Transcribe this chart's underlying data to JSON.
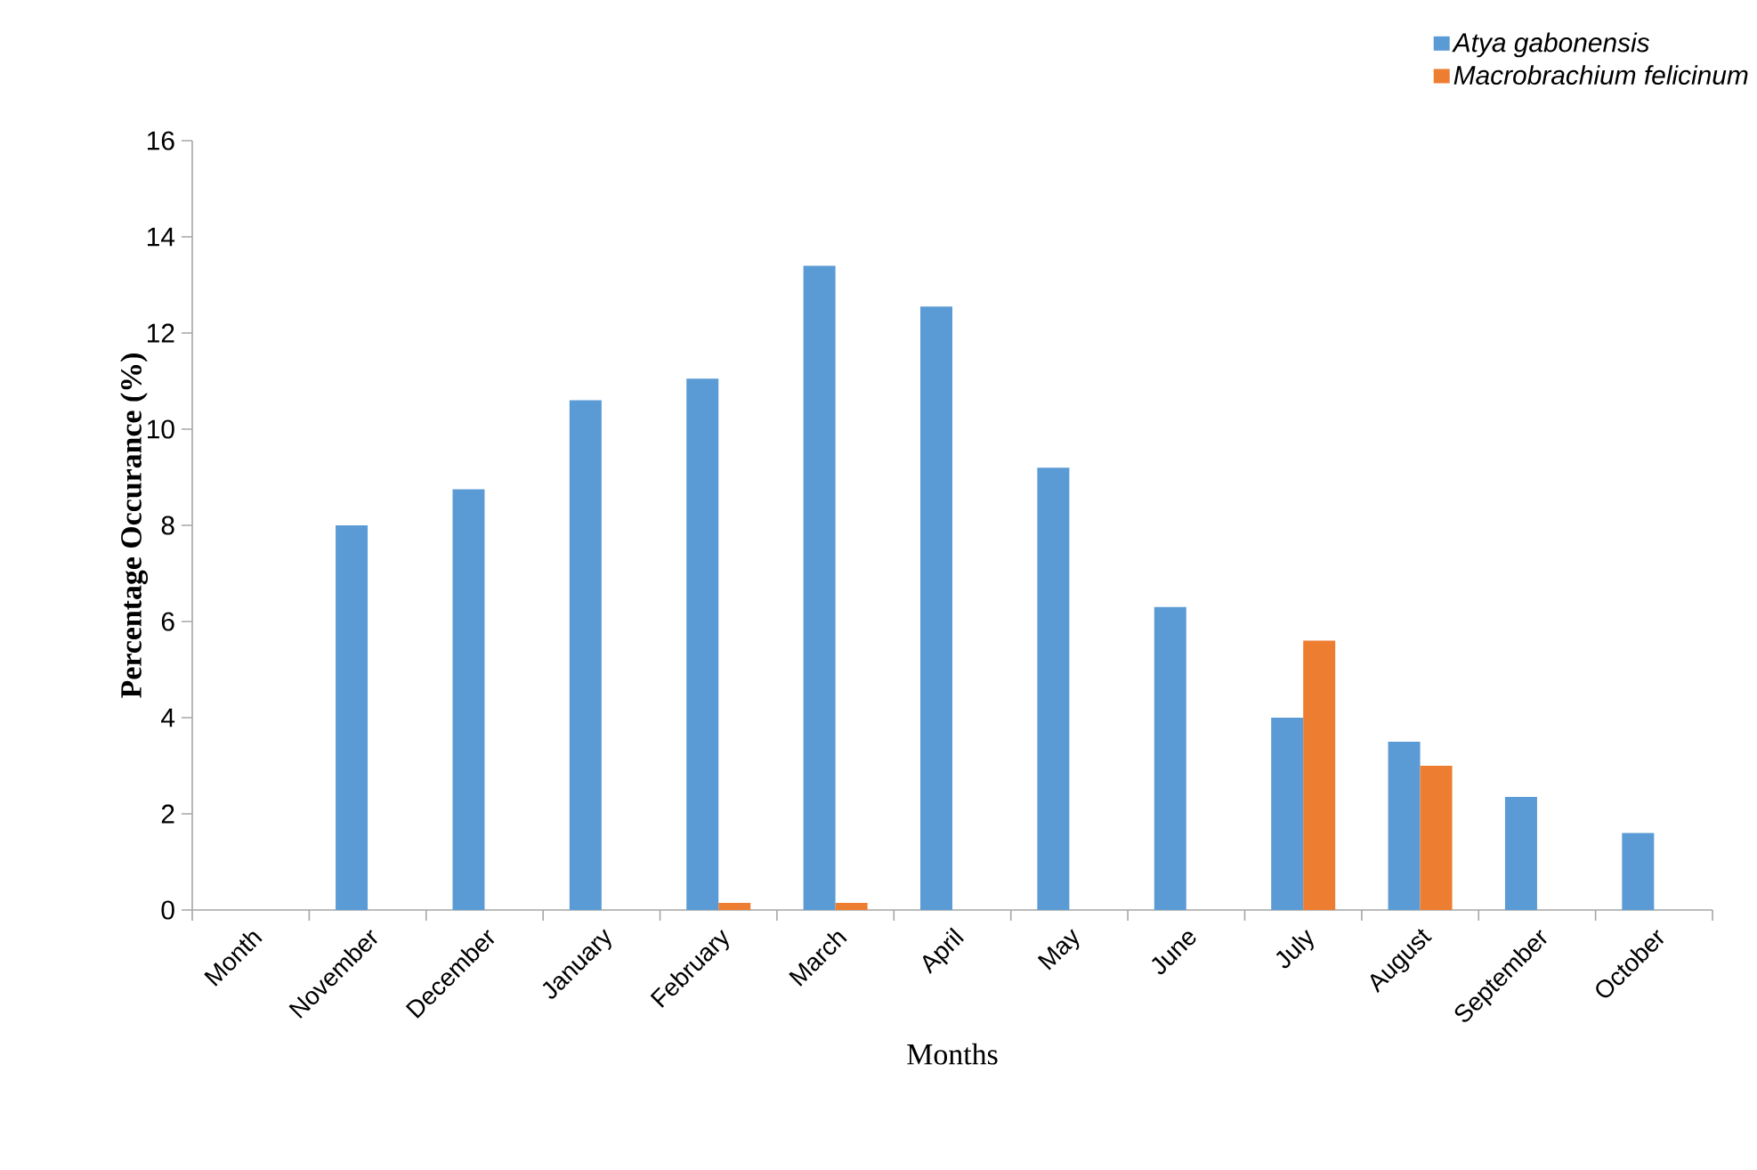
{
  "chart_data": {
    "type": "bar",
    "xlabel": "Months",
    "ylabel": "Percentage Occurance  (%)",
    "categories": [
      "Month",
      "November",
      "December",
      "January",
      "February",
      "March",
      "April",
      "May",
      "June",
      "July",
      "August",
      "September",
      "October"
    ],
    "series": [
      {
        "name": "Atya gabonensis",
        "color": "#5b9bd5",
        "values": [
          null,
          8.0,
          8.75,
          10.6,
          11.05,
          13.4,
          12.55,
          9.2,
          6.3,
          4.0,
          3.5,
          2.35,
          1.6
        ]
      },
      {
        "name": "Macrobrachium felicinum",
        "color": "#ed7d31",
        "values": [
          null,
          null,
          null,
          null,
          0.15,
          0.15,
          null,
          null,
          null,
          5.6,
          3.0,
          null,
          null
        ]
      }
    ],
    "ylim": [
      0,
      16
    ],
    "yticks": [
      0,
      2,
      4,
      6,
      8,
      10,
      12,
      14,
      16
    ],
    "legend": "top right"
  }
}
